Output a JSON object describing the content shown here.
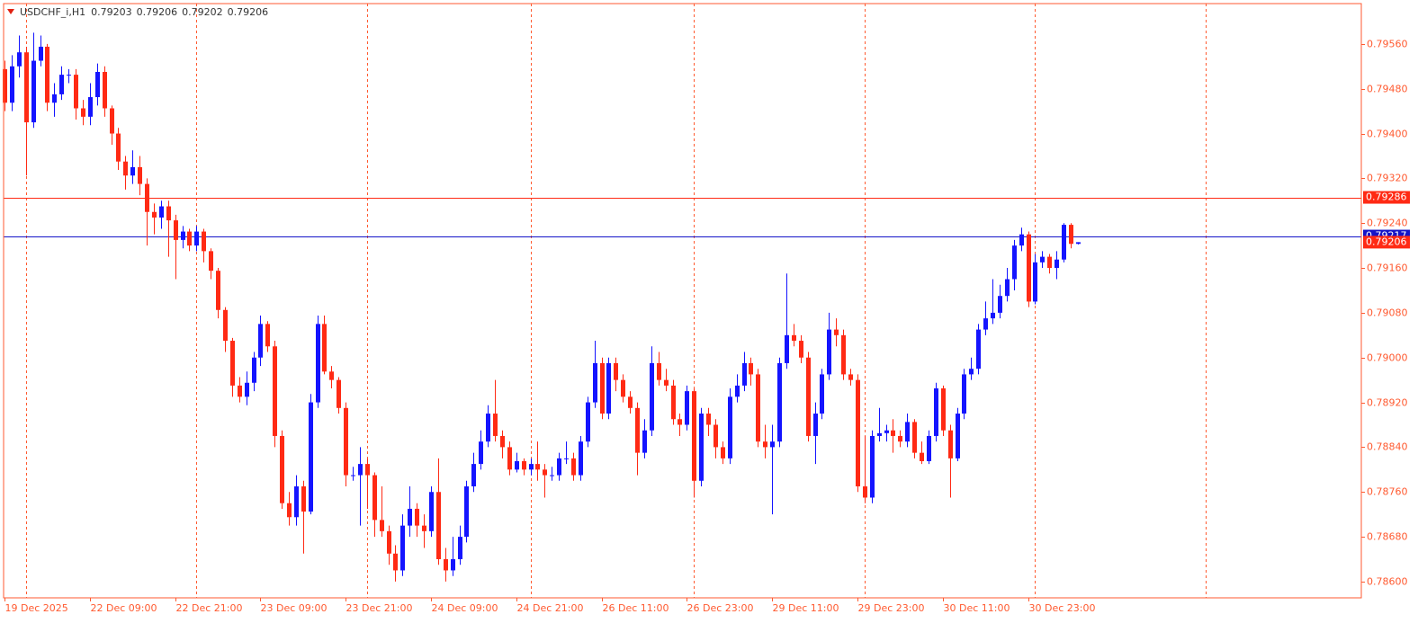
{
  "chart_data": {
    "type": "candlestick",
    "symbol": "USDCHF_i,H1",
    "quote": [
      0.79203,
      0.79206,
      0.79202,
      0.79206
    ],
    "up_color": "#1414ff",
    "down_color": "#ff2a14",
    "axis_color": "#ff5a30",
    "xlim": [
      -0.13,
      190.9
    ],
    "ylim": [
      0.78571,
      0.79632
    ],
    "yticks": [
      {
        "value": 0.7956,
        "label": "0.79560"
      },
      {
        "value": 0.7948,
        "label": "0.79480"
      },
      {
        "value": 0.794,
        "label": "0.79400"
      },
      {
        "value": 0.7932,
        "label": "0.79320"
      },
      {
        "value": 0.7924,
        "label": "0.79240"
      },
      {
        "value": 0.7916,
        "label": "0.79160"
      },
      {
        "value": 0.7908,
        "label": "0.79080"
      },
      {
        "value": 0.79,
        "label": "0.79000"
      },
      {
        "value": 0.7892,
        "label": "0.78920"
      },
      {
        "value": 0.7884,
        "label": "0.78840"
      },
      {
        "value": 0.7876,
        "label": "0.78760"
      },
      {
        "value": 0.7868,
        "label": "0.78680"
      },
      {
        "value": 0.786,
        "label": "0.78600"
      }
    ],
    "xticks": [
      {
        "value": 0,
        "label": "19 Dec 2025"
      },
      {
        "value": 12,
        "label": "22 Dec 09:00"
      },
      {
        "value": 24,
        "label": "22 Dec 21:00"
      },
      {
        "value": 36,
        "label": "23 Dec 09:00"
      },
      {
        "value": 48,
        "label": "23 Dec 21:00"
      },
      {
        "value": 60,
        "label": "24 Dec 09:00"
      },
      {
        "value": 72,
        "label": "24 Dec 21:00"
      },
      {
        "value": 84,
        "label": "26 Dec 11:00"
      },
      {
        "value": 96,
        "label": "26 Dec 23:00"
      },
      {
        "value": 108,
        "label": "29 Dec 11:00"
      },
      {
        "value": 120,
        "label": "29 Dec 23:00"
      },
      {
        "value": 132,
        "label": "30 Dec 11:00"
      },
      {
        "value": 144,
        "label": "30 Dec 23:00"
      }
    ],
    "separators": [
      3,
      27,
      51,
      74,
      97,
      121,
      145,
      169
    ],
    "price_lines": [
      {
        "value": 0.79286,
        "color": "#ff2a14"
      },
      {
        "value": 0.79217,
        "color": "#1414c8"
      }
    ],
    "bid": 0.79206,
    "open": [
      0.79515,
      0.79455,
      0.7952,
      0.79545,
      0.7942,
      0.7953,
      0.79555,
      0.79455,
      0.7947,
      0.79505,
      0.79505,
      0.79445,
      0.7943,
      0.79465,
      0.7951,
      0.79445,
      0.794,
      0.7935,
      0.79325,
      0.7934,
      0.7931,
      0.7926,
      0.7925,
      0.7927,
      0.79245,
      0.7921,
      0.79225,
      0.792,
      0.79225,
      0.7919,
      0.79155,
      0.79085,
      0.7903,
      0.7895,
      0.7893,
      0.78955,
      0.79,
      0.7906,
      0.7902,
      0.7886,
      0.7874,
      0.78715,
      0.7877,
      0.78725,
      0.7892,
      0.7906,
      0.78975,
      0.7896,
      0.7891,
      0.7879,
      0.7879,
      0.7881,
      0.7879,
      0.7871,
      0.7869,
      0.7865,
      0.7862,
      0.787,
      0.7873,
      0.787,
      0.7869,
      0.7876,
      0.7864,
      0.7862,
      0.7864,
      0.7868,
      0.7877,
      0.7881,
      0.7885,
      0.789,
      0.7886,
      0.7884,
      0.788,
      0.78815,
      0.788,
      0.7881,
      0.788,
      0.7879,
      0.7879,
      0.7882,
      0.7882,
      0.7879,
      0.7885,
      0.7892,
      0.7899,
      0.789,
      0.7899,
      0.7896,
      0.7893,
      0.7891,
      0.7883,
      0.7887,
      0.7899,
      0.7896,
      0.7895,
      0.7889,
      0.7888,
      0.7894,
      0.7878,
      0.789,
      0.7888,
      0.7884,
      0.7882,
      0.7893,
      0.7895,
      0.7899,
      0.7897,
      0.7885,
      0.7884,
      0.7885,
      0.7899,
      0.7904,
      0.7903,
      0.79,
      0.7886,
      0.789,
      0.7897,
      0.7905,
      0.7904,
      0.7897,
      0.7896,
      0.7877,
      0.7875,
      0.7886,
      0.78865,
      0.7887,
      0.7886,
      0.7885,
      0.78885,
      0.7883,
      0.78815,
      0.7886,
      0.78945,
      0.7887,
      0.7882,
      0.789,
      0.7897,
      0.7898,
      0.7905,
      0.7907,
      0.7908,
      0.7911,
      0.7914,
      0.792,
      0.7922,
      0.791,
      0.7917,
      0.7918,
      0.7916,
      0.79175,
      0.79237,
      0.79203
    ],
    "high": [
      0.7953,
      0.7954,
      0.79575,
      0.79555,
      0.7958,
      0.79575,
      0.7956,
      0.7949,
      0.7952,
      0.79515,
      0.79515,
      0.7946,
      0.7949,
      0.79525,
      0.7952,
      0.7945,
      0.7941,
      0.7936,
      0.7937,
      0.7936,
      0.7932,
      0.79275,
      0.7928,
      0.7928,
      0.79255,
      0.79235,
      0.7923,
      0.79235,
      0.7923,
      0.79195,
      0.7916,
      0.7909,
      0.79035,
      0.78965,
      0.78975,
      0.7901,
      0.79075,
      0.79065,
      0.7903,
      0.7887,
      0.7876,
      0.7879,
      0.7878,
      0.78935,
      0.79075,
      0.79075,
      0.78985,
      0.78965,
      0.7892,
      0.78805,
      0.7884,
      0.7882,
      0.78795,
      0.7877,
      0.787,
      0.78665,
      0.7872,
      0.7877,
      0.7874,
      0.7872,
      0.7877,
      0.7882,
      0.7866,
      0.7868,
      0.787,
      0.7878,
      0.7883,
      0.7887,
      0.78915,
      0.7896,
      0.7887,
      0.7885,
      0.7883,
      0.7882,
      0.7882,
      0.7885,
      0.7881,
      0.78805,
      0.7883,
      0.7885,
      0.7883,
      0.7886,
      0.7893,
      0.7903,
      0.79,
      0.79,
      0.79,
      0.7897,
      0.7894,
      0.7892,
      0.7889,
      0.7902,
      0.7901,
      0.7898,
      0.7896,
      0.789,
      0.7895,
      0.78945,
      0.7891,
      0.7891,
      0.7889,
      0.7885,
      0.78945,
      0.7897,
      0.7901,
      0.79,
      0.7898,
      0.7888,
      0.7888,
      0.79,
      0.7915,
      0.7906,
      0.7904,
      0.7901,
      0.7892,
      0.7898,
      0.7908,
      0.7907,
      0.7905,
      0.7898,
      0.7897,
      0.7886,
      0.7887,
      0.7891,
      0.7888,
      0.7889,
      0.7887,
      0.789,
      0.7889,
      0.7885,
      0.7887,
      0.78955,
      0.7895,
      0.7888,
      0.7891,
      0.7898,
      0.79,
      0.7906,
      0.791,
      0.7914,
      0.7913,
      0.7916,
      0.7921,
      0.79232,
      0.79225,
      0.79185,
      0.7919,
      0.79185,
      0.7919,
      0.7924,
      0.7924,
      0.79206
    ],
    "low": [
      0.7944,
      0.7944,
      0.795,
      0.79325,
      0.7941,
      0.7952,
      0.7944,
      0.7943,
      0.7946,
      0.7949,
      0.79425,
      0.79415,
      0.79415,
      0.7945,
      0.7943,
      0.7938,
      0.79335,
      0.793,
      0.7931,
      0.7929,
      0.792,
      0.7922,
      0.7923,
      0.7918,
      0.7914,
      0.79195,
      0.7919,
      0.7919,
      0.7917,
      0.7914,
      0.7907,
      0.7901,
      0.7893,
      0.7892,
      0.78915,
      0.7894,
      0.78985,
      0.7901,
      0.7884,
      0.7873,
      0.787,
      0.787,
      0.7865,
      0.7872,
      0.7891,
      0.7897,
      0.78945,
      0.789,
      0.7877,
      0.7878,
      0.787,
      0.7873,
      0.7868,
      0.7868,
      0.7863,
      0.786,
      0.7861,
      0.7868,
      0.7868,
      0.7866,
      0.7868,
      0.7863,
      0.786,
      0.7861,
      0.7863,
      0.7867,
      0.7876,
      0.788,
      0.7884,
      0.7885,
      0.7882,
      0.7879,
      0.78795,
      0.7879,
      0.7879,
      0.7878,
      0.7875,
      0.7878,
      0.7878,
      0.7881,
      0.7878,
      0.7878,
      0.7884,
      0.7891,
      0.7889,
      0.7889,
      0.7894,
      0.7892,
      0.789,
      0.7879,
      0.7882,
      0.7886,
      0.7895,
      0.7894,
      0.7888,
      0.7886,
      0.7887,
      0.7875,
      0.7877,
      0.7886,
      0.7882,
      0.7881,
      0.7881,
      0.7892,
      0.7894,
      0.7895,
      0.7884,
      0.7882,
      0.7872,
      0.7884,
      0.7898,
      0.7902,
      0.7899,
      0.7885,
      0.7881,
      0.7889,
      0.7896,
      0.7902,
      0.7896,
      0.7895,
      0.7876,
      0.7874,
      0.7874,
      0.7885,
      0.7885,
      0.7883,
      0.7884,
      0.7884,
      0.7882,
      0.7881,
      0.7881,
      0.7885,
      0.7886,
      0.7875,
      0.78815,
      0.7889,
      0.7896,
      0.7897,
      0.7904,
      0.7906,
      0.7907,
      0.791,
      0.7912,
      0.7919,
      0.7909,
      0.79095,
      0.7916,
      0.7915,
      0.7914,
      0.7917,
      0.79195,
      0.79202
    ],
    "close": [
      0.79455,
      0.7952,
      0.79545,
      0.7942,
      0.7953,
      0.79555,
      0.79455,
      0.7947,
      0.79505,
      0.79505,
      0.79445,
      0.7943,
      0.79465,
      0.7951,
      0.79445,
      0.794,
      0.7935,
      0.79325,
      0.7934,
      0.7931,
      0.7926,
      0.7925,
      0.7927,
      0.79245,
      0.7921,
      0.79225,
      0.792,
      0.79225,
      0.7919,
      0.79155,
      0.79085,
      0.7903,
      0.7895,
      0.7893,
      0.78955,
      0.79,
      0.7906,
      0.7902,
      0.7886,
      0.7874,
      0.78715,
      0.7877,
      0.78725,
      0.7892,
      0.7906,
      0.78975,
      0.7896,
      0.7891,
      0.7879,
      0.7879,
      0.7881,
      0.7879,
      0.7871,
      0.7869,
      0.7865,
      0.7862,
      0.787,
      0.7873,
      0.787,
      0.7869,
      0.7876,
      0.7864,
      0.7862,
      0.7864,
      0.7868,
      0.7877,
      0.7881,
      0.7885,
      0.789,
      0.7886,
      0.7884,
      0.788,
      0.78815,
      0.788,
      0.7881,
      0.788,
      0.7879,
      0.7879,
      0.7882,
      0.7882,
      0.7879,
      0.7885,
      0.7892,
      0.7899,
      0.789,
      0.7899,
      0.7896,
      0.7893,
      0.7891,
      0.7883,
      0.7887,
      0.7899,
      0.7896,
      0.7895,
      0.7889,
      0.7888,
      0.7894,
      0.7878,
      0.789,
      0.7888,
      0.7884,
      0.7882,
      0.7893,
      0.7895,
      0.7899,
      0.7897,
      0.7885,
      0.7884,
      0.7885,
      0.7899,
      0.7904,
      0.7903,
      0.79,
      0.7886,
      0.789,
      0.7897,
      0.7905,
      0.7904,
      0.7897,
      0.7896,
      0.7877,
      0.7875,
      0.7886,
      0.78865,
      0.7887,
      0.7886,
      0.7885,
      0.78885,
      0.7883,
      0.78815,
      0.7886,
      0.78945,
      0.7887,
      0.7882,
      0.789,
      0.7897,
      0.7898,
      0.7905,
      0.7907,
      0.7908,
      0.7911,
      0.7914,
      0.792,
      0.7922,
      0.791,
      0.7917,
      0.7918,
      0.7916,
      0.79175,
      0.79237,
      0.79203,
      0.79206
    ]
  }
}
